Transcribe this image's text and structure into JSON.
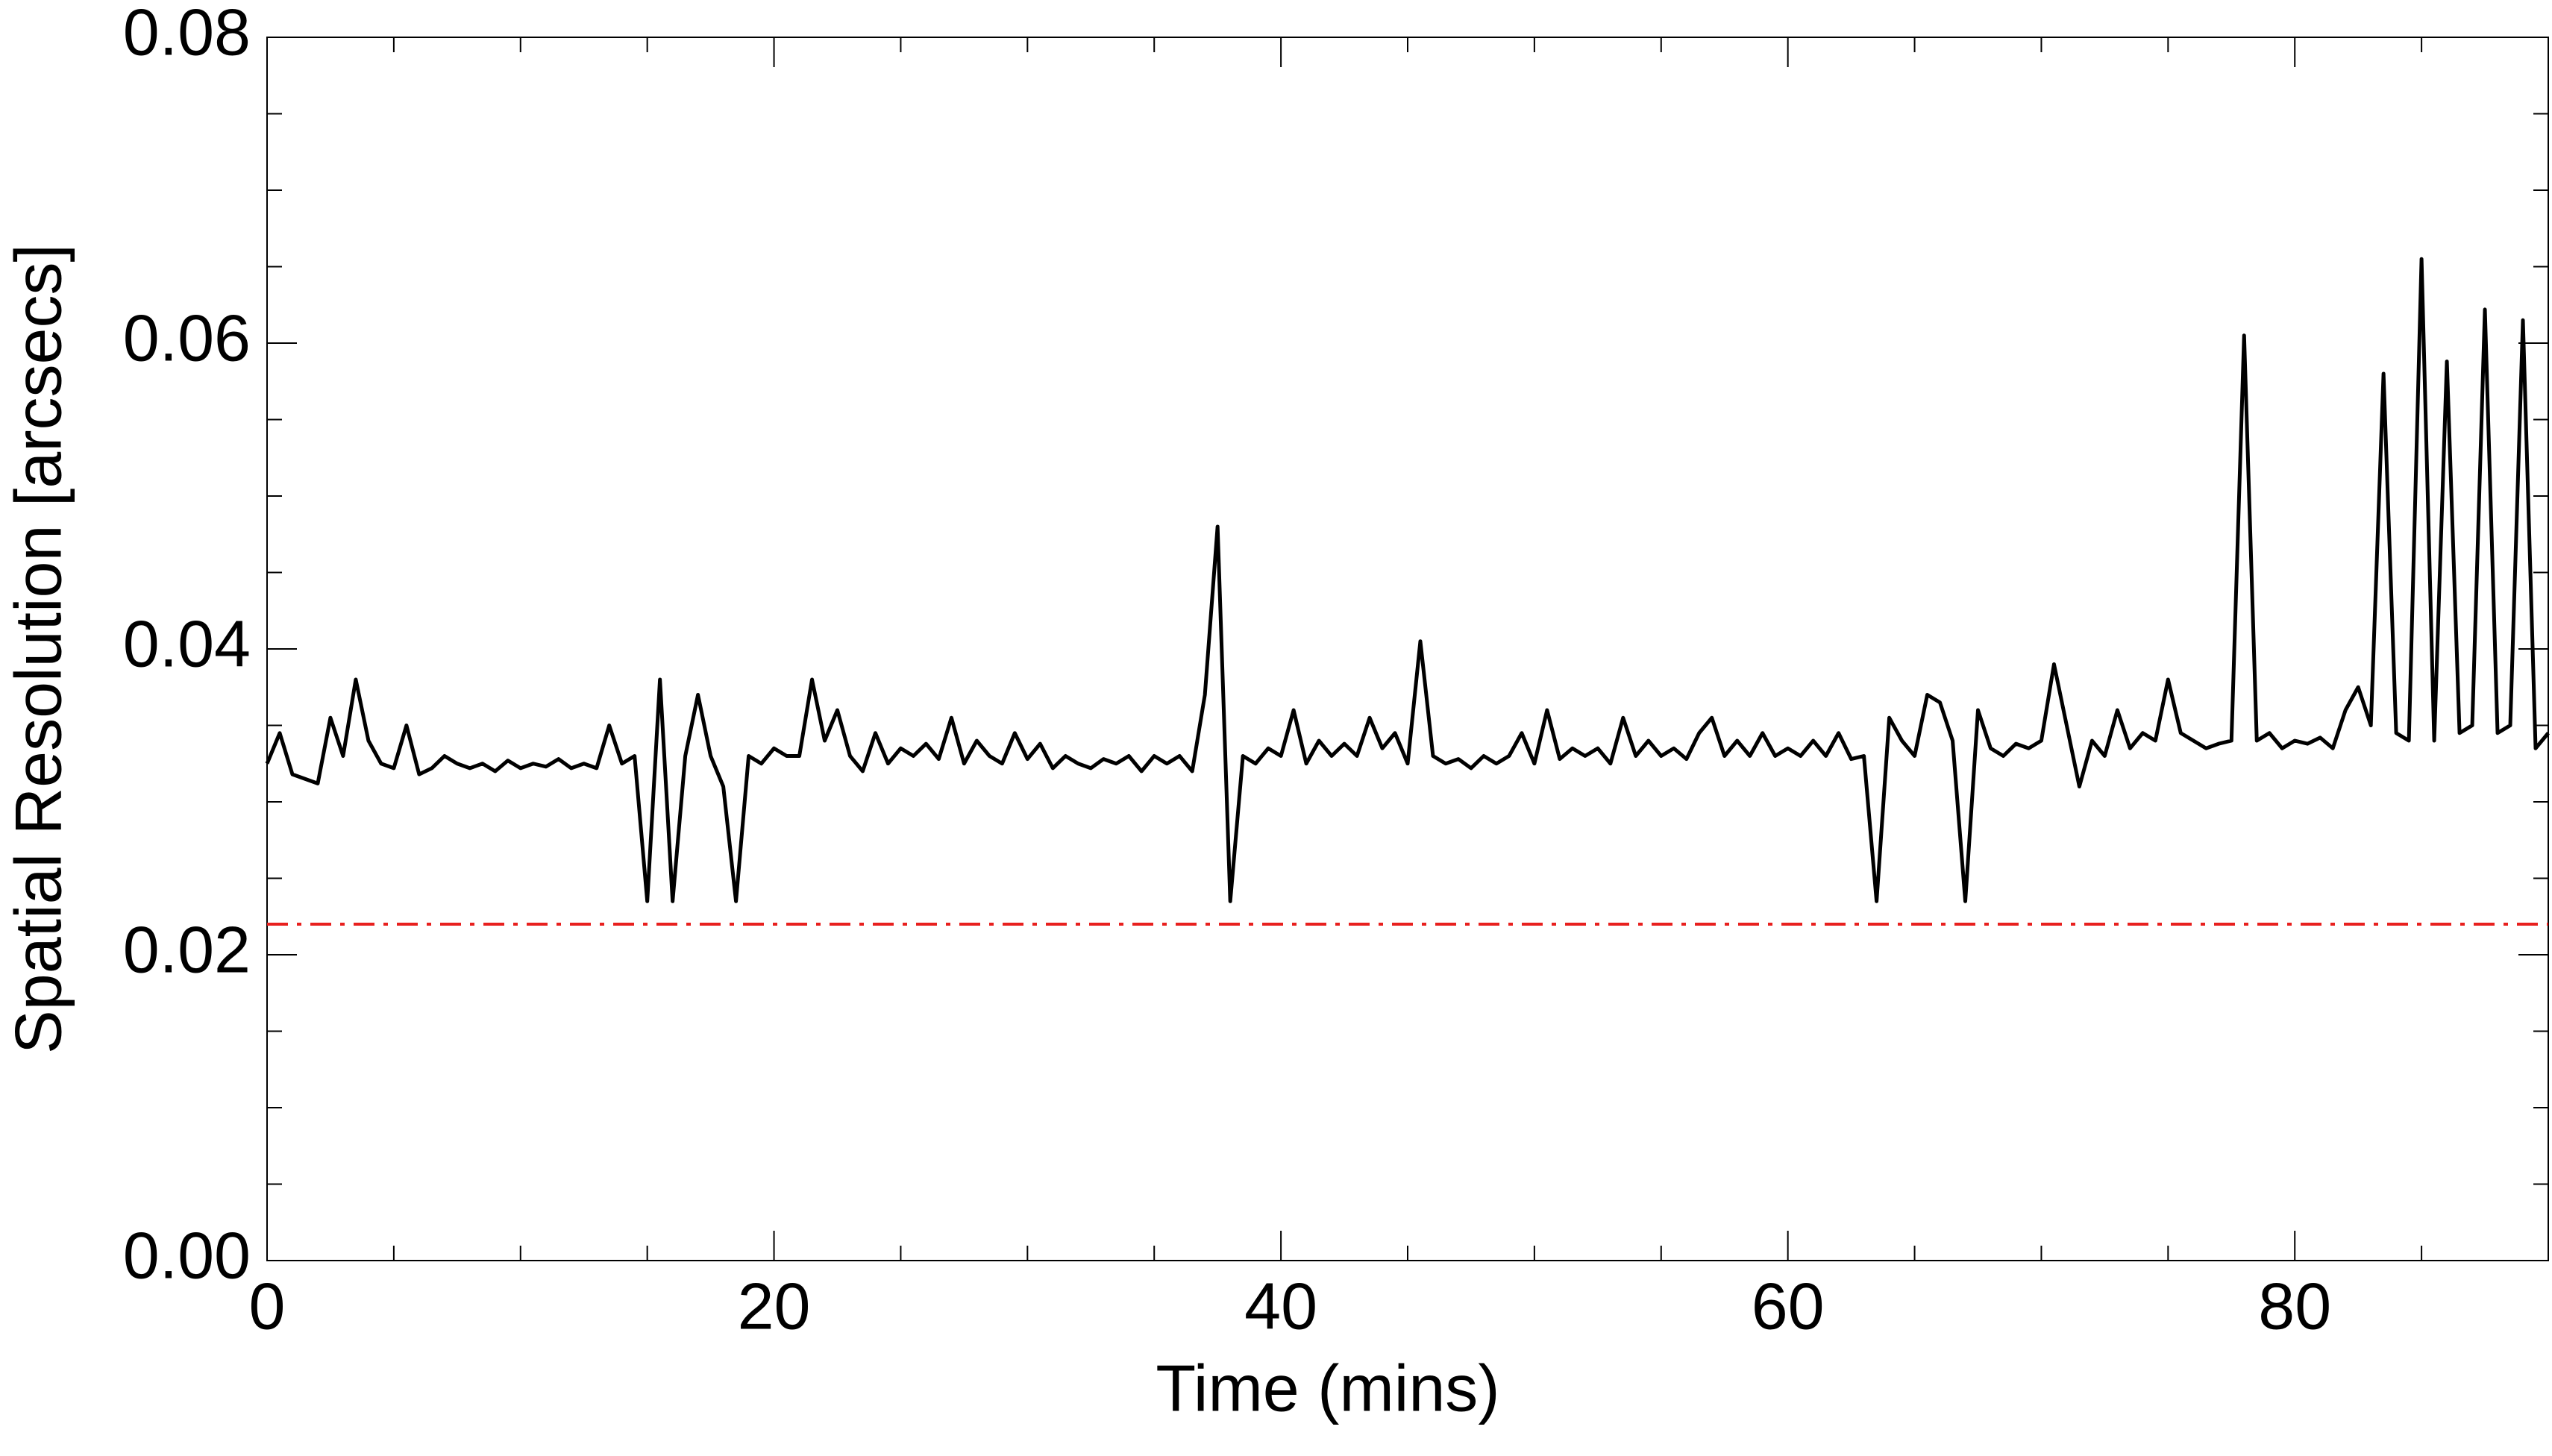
{
  "chart_data": {
    "type": "line",
    "xlabel": "Time (mins)",
    "ylabel": "Spatial Resolution [arcsecs]",
    "xlim": [
      0,
      90
    ],
    "ylim": [
      0,
      0.08
    ],
    "xticks": [
      0,
      20,
      40,
      60,
      80
    ],
    "xminorticks": [
      5,
      10,
      15,
      25,
      30,
      35,
      45,
      50,
      55,
      65,
      70,
      75,
      85
    ],
    "yticks": [
      {
        "value": 0,
        "label": "0.00"
      },
      {
        "value": 0.02,
        "label": "0.02"
      },
      {
        "value": 0.04,
        "label": "0.04"
      },
      {
        "value": 0.06,
        "label": "0.06"
      },
      {
        "value": 0.08,
        "label": "0.08"
      }
    ],
    "yminorticks": [
      0.005,
      0.01,
      0.015,
      0.025,
      0.03,
      0.035,
      0.045,
      0.05,
      0.055,
      0.065,
      0.07,
      0.075
    ],
    "hline": {
      "value": 0.022,
      "color": "#e8201e"
    },
    "x": [
      0,
      0.5,
      1,
      1.5,
      2,
      2.5,
      3,
      3.5,
      4,
      4.5,
      5,
      5.5,
      6,
      6.5,
      7,
      7.5,
      8,
      8.5,
      9,
      9.5,
      10,
      10.5,
      11,
      11.5,
      12,
      12.5,
      13,
      13.5,
      14,
      14.5,
      15,
      15.5,
      16,
      16.5,
      17,
      17.5,
      18,
      18.5,
      19,
      19.5,
      20,
      20.5,
      21,
      21.5,
      22,
      22.5,
      23,
      23.5,
      24,
      24.5,
      25,
      25.5,
      26,
      26.5,
      27,
      27.5,
      28,
      28.5,
      29,
      29.5,
      30,
      30.5,
      31,
      31.5,
      32,
      32.5,
      33,
      33.5,
      34,
      34.5,
      35,
      35.5,
      36,
      36.5,
      37,
      37.5,
      38,
      38.5,
      39,
      39.5,
      40,
      40.5,
      41,
      41.5,
      42,
      42.5,
      43,
      43.5,
      44,
      44.5,
      45,
      45.5,
      46,
      46.5,
      47,
      47.5,
      48,
      48.5,
      49,
      49.5,
      50,
      50.5,
      51,
      51.5,
      52,
      52.5,
      53,
      53.5,
      54,
      54.5,
      55,
      55.5,
      56,
      56.5,
      57,
      57.5,
      58,
      58.5,
      59,
      59.5,
      60,
      60.5,
      61,
      61.5,
      62,
      62.5,
      63,
      63.5,
      64,
      64.5,
      65,
      65.5,
      66,
      66.5,
      67,
      67.5,
      68,
      68.5,
      69,
      69.5,
      70,
      70.5,
      71,
      71.5,
      72,
      72.5,
      73,
      73.5,
      74,
      74.5,
      75,
      75.5,
      76,
      76.5,
      77,
      77.5,
      78,
      78.5,
      79,
      79.5,
      80,
      80.5,
      81,
      81.5,
      82,
      82.5,
      83,
      83.5,
      84,
      84.5,
      85,
      85.5,
      86,
      86.5,
      87,
      87.5,
      88,
      88.5,
      89,
      89.5,
      90
    ],
    "series": [
      {
        "color": "#000000",
        "values": [
          0.0325,
          0.0345,
          0.0318,
          0.0315,
          0.0312,
          0.0355,
          0.033,
          0.038,
          0.034,
          0.0325,
          0.0322,
          0.035,
          0.0318,
          0.0322,
          0.033,
          0.0325,
          0.0322,
          0.0325,
          0.032,
          0.0327,
          0.0322,
          0.0325,
          0.0323,
          0.0328,
          0.0322,
          0.0325,
          0.0322,
          0.035,
          0.0325,
          0.033,
          0.0235,
          0.038,
          0.0235,
          0.033,
          0.037,
          0.033,
          0.031,
          0.0235,
          0.033,
          0.0325,
          0.0335,
          0.033,
          0.033,
          0.038,
          0.034,
          0.036,
          0.033,
          0.032,
          0.0345,
          0.0325,
          0.0335,
          0.033,
          0.0338,
          0.0328,
          0.0355,
          0.0325,
          0.034,
          0.033,
          0.0325,
          0.0345,
          0.0328,
          0.0338,
          0.0322,
          0.033,
          0.0325,
          0.0322,
          0.0328,
          0.0325,
          0.033,
          0.032,
          0.033,
          0.0325,
          0.033,
          0.032,
          0.037,
          0.048,
          0.0235,
          0.033,
          0.0325,
          0.0335,
          0.033,
          0.036,
          0.0325,
          0.034,
          0.033,
          0.0338,
          0.033,
          0.0355,
          0.0335,
          0.0345,
          0.0325,
          0.0405,
          0.033,
          0.0325,
          0.0328,
          0.0322,
          0.033,
          0.0325,
          0.033,
          0.0345,
          0.0325,
          0.036,
          0.0328,
          0.0335,
          0.033,
          0.0335,
          0.0325,
          0.0355,
          0.033,
          0.034,
          0.033,
          0.0335,
          0.0328,
          0.0345,
          0.0355,
          0.033,
          0.034,
          0.033,
          0.0345,
          0.033,
          0.0335,
          0.033,
          0.034,
          0.033,
          0.0345,
          0.0328,
          0.033,
          0.0235,
          0.0355,
          0.034,
          0.033,
          0.037,
          0.0365,
          0.034,
          0.0235,
          0.036,
          0.0335,
          0.033,
          0.0338,
          0.0335,
          0.034,
          0.039,
          0.035,
          0.031,
          0.034,
          0.033,
          0.036,
          0.0335,
          0.0345,
          0.034,
          0.038,
          0.0345,
          0.034,
          0.0335,
          0.0338,
          0.034,
          0.0605,
          0.034,
          0.0345,
          0.0335,
          0.034,
          0.0338,
          0.0342,
          0.0335,
          0.036,
          0.0375,
          0.035,
          0.058,
          0.0345,
          0.034,
          0.0655,
          0.034,
          0.0588,
          0.0345,
          0.035,
          0.0622,
          0.0345,
          0.035,
          0.0615,
          0.0335,
          0.0345
        ]
      }
    ]
  }
}
